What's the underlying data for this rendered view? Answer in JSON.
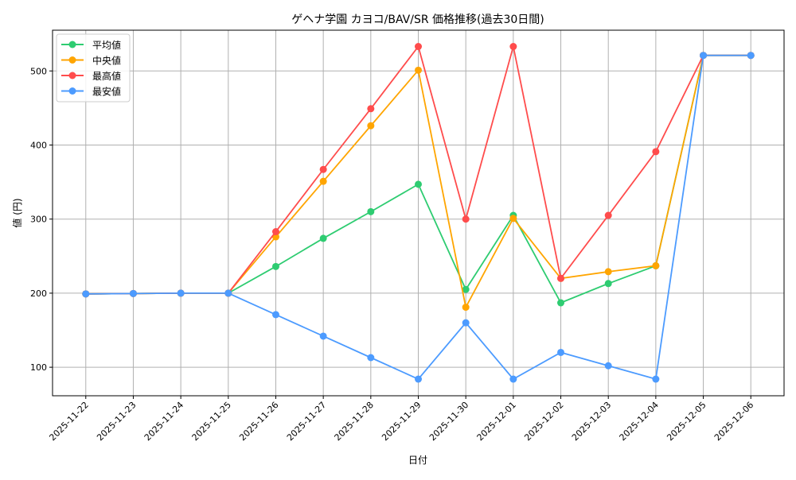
{
  "chart_data": {
    "type": "line",
    "title": "ゲヘナ学園 カヨコ/BAV/SR 価格推移(過去30日間)",
    "xlabel": "日付",
    "ylabel": "値 (円)",
    "x": [
      "2025-11-22",
      "2025-11-23",
      "2025-11-24",
      "2025-11-25",
      "2025-11-26",
      "2025-11-27",
      "2025-11-28",
      "2025-11-29",
      "2025-11-30",
      "2025-12-01",
      "2025-12-02",
      "2025-12-03",
      "2025-12-04",
      "2025-12-05",
      "2025-12-06"
    ],
    "yticks": [
      100,
      200,
      300,
      400,
      500
    ],
    "ylim": [
      61.5,
      555
    ],
    "grid": true,
    "legend_position": "top-left",
    "series": [
      {
        "name": "平均値",
        "color": "#2ecc71",
        "values": [
          199,
          199.5,
          200,
          200,
          236,
          274,
          310,
          347,
          205,
          305,
          187,
          213,
          237,
          521,
          521
        ]
      },
      {
        "name": "中央値",
        "color": "#ffa500",
        "values": [
          199,
          199.5,
          200,
          200,
          276,
          351,
          426,
          501,
          181,
          301,
          220,
          229,
          237,
          521,
          521
        ]
      },
      {
        "name": "最高値",
        "color": "#ff4c4c",
        "values": [
          199,
          199.5,
          200,
          200,
          283,
          367,
          449,
          533,
          300,
          533,
          220,
          305,
          391,
          521,
          521
        ]
      },
      {
        "name": "最安値",
        "color": "#4c9bff",
        "values": [
          199,
          199.5,
          200,
          200,
          171,
          142,
          113,
          84,
          160,
          84,
          120,
          102,
          84,
          521,
          521
        ]
      }
    ]
  }
}
